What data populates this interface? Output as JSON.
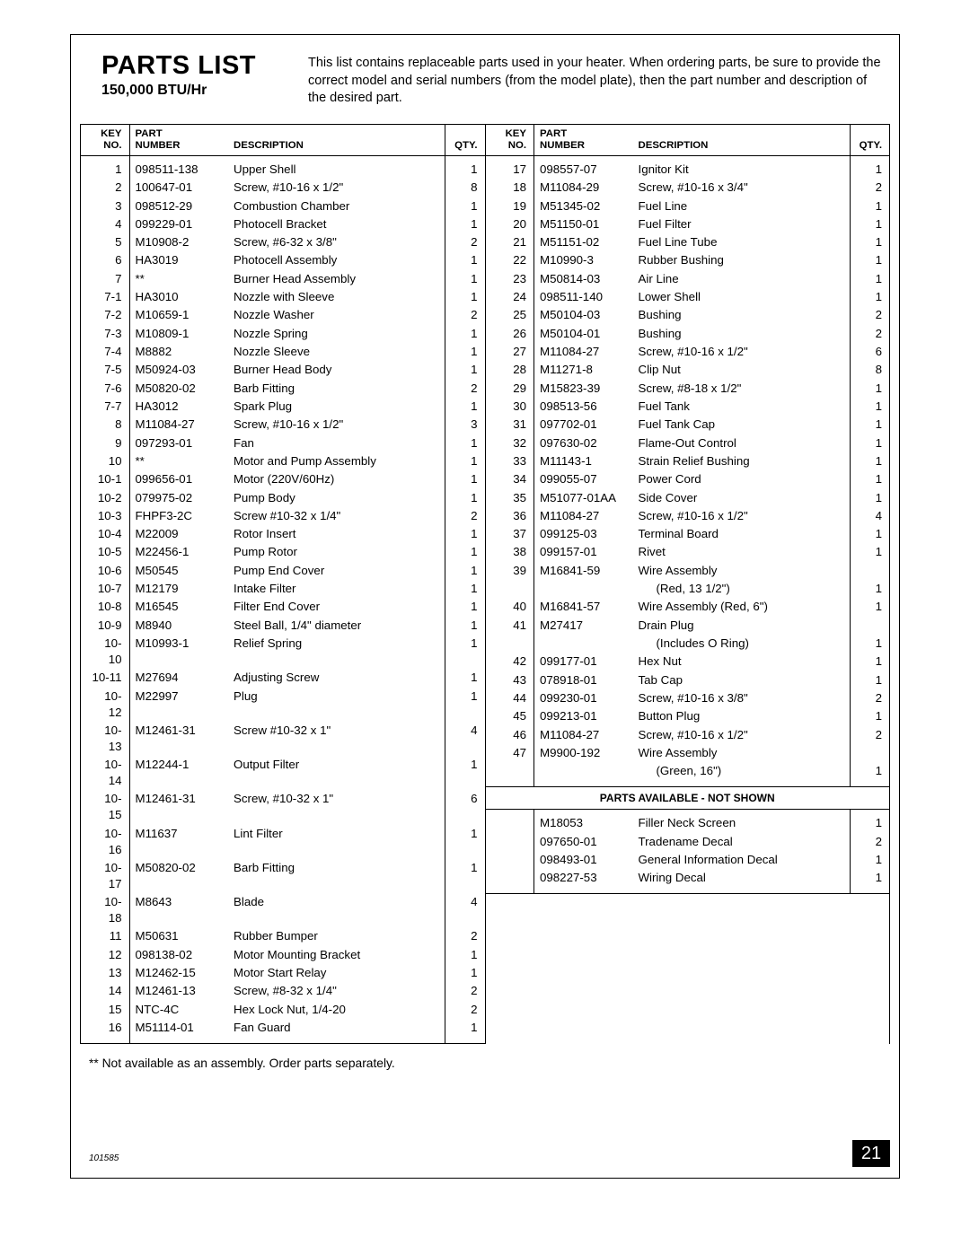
{
  "title": "PARTS LIST",
  "subtitle": "150,000 BTU/Hr",
  "intro": "This list contains replaceable parts used in your heater. When ordering parts, be sure to provide the correct model and serial numbers (from the model plate), then the part number and description of the desired part.",
  "headers": {
    "key": "KEY NO.",
    "part": "PART NUMBER",
    "desc": "DESCRIPTION",
    "qty": "QTY."
  },
  "left": [
    {
      "k": "1",
      "p": "098511-138",
      "d": "Upper Shell",
      "q": "1"
    },
    {
      "k": "2",
      "p": "100647-01",
      "d": "Screw, #10-16 x 1/2\"",
      "q": "8"
    },
    {
      "k": "3",
      "p": "098512-29",
      "d": "Combustion Chamber",
      "q": "1"
    },
    {
      "k": "4",
      "p": "099229-01",
      "d": "Photocell Bracket",
      "q": "1"
    },
    {
      "k": "5",
      "p": "M10908-2",
      "d": "Screw, #6-32 x 3/8\"",
      "q": "2"
    },
    {
      "k": "6",
      "p": "HA3019",
      "d": "Photocell Assembly",
      "q": "1"
    },
    {
      "k": "7",
      "p": "**",
      "d": "Burner Head Assembly",
      "q": "1"
    },
    {
      "k": "7-1",
      "p": "HA3010",
      "d": "Nozzle with Sleeve",
      "q": "1",
      "sub": true
    },
    {
      "k": "7-2",
      "p": "M10659-1",
      "d": "Nozzle Washer",
      "q": "2",
      "sub": true
    },
    {
      "k": "7-3",
      "p": "M10809-1",
      "d": "Nozzle Spring",
      "q": "1",
      "sub": true
    },
    {
      "k": "7-4",
      "p": "M8882",
      "d": "Nozzle Sleeve",
      "q": "1",
      "sub": true
    },
    {
      "k": "7-5",
      "p": "M50924-03",
      "d": "Burner Head Body",
      "q": "1",
      "sub": true
    },
    {
      "k": "7-6",
      "p": "M50820-02",
      "d": "Barb Fitting",
      "q": "2",
      "sub": true
    },
    {
      "k": "7-7",
      "p": "HA3012",
      "d": "Spark Plug",
      "q": "1",
      "sub": true
    },
    {
      "k": "8",
      "p": "M11084-27",
      "d": "Screw, #10-16 x 1/2\"",
      "q": "3"
    },
    {
      "k": "9",
      "p": "097293-01",
      "d": "Fan",
      "q": "1"
    },
    {
      "k": "10",
      "p": "**",
      "d": "Motor and Pump Assembly",
      "q": "1"
    },
    {
      "k": "10-1",
      "p": "099656-01",
      "d": "Motor (220V/60Hz)",
      "q": "1",
      "sub": true
    },
    {
      "k": "10-2",
      "p": "079975-02",
      "d": "Pump Body",
      "q": "1",
      "sub": true
    },
    {
      "k": "10-3",
      "p": "FHPF3-2C",
      "d": "Screw #10-32 x 1/4\"",
      "q": "2",
      "sub": true
    },
    {
      "k": "10-4",
      "p": "M22009",
      "d": "Rotor Insert",
      "q": "1",
      "sub": true
    },
    {
      "k": "10-5",
      "p": "M22456-1",
      "d": "Pump Rotor",
      "q": "1",
      "sub": true
    },
    {
      "k": "10-6",
      "p": "M50545",
      "d": "Pump End Cover",
      "q": "1",
      "sub": true
    },
    {
      "k": "10-7",
      "p": "M12179",
      "d": "Intake Filter",
      "q": "1",
      "sub": true
    },
    {
      "k": "10-8",
      "p": "M16545",
      "d": "Filter End Cover",
      "q": "1",
      "sub": true
    },
    {
      "k": "10-9",
      "p": "M8940",
      "d": "Steel Ball, 1/4\" diameter",
      "q": "1",
      "sub": true
    },
    {
      "k": "10-10",
      "p": "M10993-1",
      "d": "Relief Spring",
      "q": "1",
      "sub": true
    },
    {
      "k": "10-11",
      "p": "M27694",
      "d": "Adjusting Screw",
      "q": "1",
      "sub": true
    },
    {
      "k": "10-12",
      "p": "M22997",
      "d": "Plug",
      "q": "1",
      "sub": true
    },
    {
      "k": "10-13",
      "p": "M12461-31",
      "d": "Screw #10-32 x 1\"",
      "q": "4",
      "sub": true
    },
    {
      "k": "10-14",
      "p": "M12244-1",
      "d": "Output Filter",
      "q": "1",
      "sub": true
    },
    {
      "k": "10-15",
      "p": "M12461-31",
      "d": "Screw, #10-32 x 1\"",
      "q": "6",
      "sub": true
    },
    {
      "k": "10-16",
      "p": "M11637",
      "d": "Lint Filter",
      "q": "1",
      "sub": true
    },
    {
      "k": "10-17",
      "p": "M50820-02",
      "d": "Barb Fitting",
      "q": "1",
      "sub": true
    },
    {
      "k": "10-18",
      "p": "M8643",
      "d": "Blade",
      "q": "4",
      "sub": true
    },
    {
      "k": "11",
      "p": "M50631",
      "d": "Rubber Bumper",
      "q": "2"
    },
    {
      "k": "12",
      "p": "098138-02",
      "d": "Motor Mounting Bracket",
      "q": "1"
    },
    {
      "k": "13",
      "p": "M12462-15",
      "d": "Motor Start Relay",
      "q": "1"
    },
    {
      "k": "14",
      "p": "M12461-13",
      "d": "Screw, #8-32 x 1/4\"",
      "q": "2"
    },
    {
      "k": "15",
      "p": "NTC-4C",
      "d": "Hex Lock Nut, 1/4-20",
      "q": "2"
    },
    {
      "k": "16",
      "p": "M51114-01",
      "d": "Fan Guard",
      "q": "1"
    }
  ],
  "right": [
    {
      "k": "17",
      "p": "098557-07",
      "d": "Ignitor Kit",
      "q": "1"
    },
    {
      "k": "18",
      "p": "M11084-29",
      "d": "Screw, #10-16 x 3/4\"",
      "q": "2"
    },
    {
      "k": "19",
      "p": "M51345-02",
      "d": "Fuel Line",
      "q": "1"
    },
    {
      "k": "20",
      "p": "M51150-01",
      "d": "Fuel Filter",
      "q": "1"
    },
    {
      "k": "21",
      "p": "M51151-02",
      "d": "Fuel Line Tube",
      "q": "1"
    },
    {
      "k": "22",
      "p": "M10990-3",
      "d": "Rubber Bushing",
      "q": "1"
    },
    {
      "k": "23",
      "p": "M50814-03",
      "d": "Air Line",
      "q": "1"
    },
    {
      "k": "24",
      "p": "098511-140",
      "d": "Lower Shell",
      "q": "1"
    },
    {
      "k": "25",
      "p": "M50104-03",
      "d": "Bushing",
      "q": "2"
    },
    {
      "k": "26",
      "p": "M50104-01",
      "d": "Bushing",
      "q": "2"
    },
    {
      "k": "27",
      "p": "M11084-27",
      "d": "Screw, #10-16 x 1/2\"",
      "q": "6"
    },
    {
      "k": "28",
      "p": "M11271-8",
      "d": "Clip Nut",
      "q": "8"
    },
    {
      "k": "29",
      "p": "M15823-39",
      "d": "Screw, #8-18 x 1/2\"",
      "q": "1"
    },
    {
      "k": "30",
      "p": "098513-56",
      "d": "Fuel Tank",
      "q": "1"
    },
    {
      "k": "31",
      "p": "097702-01",
      "d": "Fuel Tank Cap",
      "q": "1"
    },
    {
      "k": "32",
      "p": "097630-02",
      "d": "Flame-Out Control",
      "q": "1"
    },
    {
      "k": "33",
      "p": "M11143-1",
      "d": "Strain Relief Bushing",
      "q": "1"
    },
    {
      "k": "34",
      "p": "099055-07",
      "d": "Power Cord",
      "q": "1"
    },
    {
      "k": "35",
      "p": "M51077-01AA",
      "d": "Side Cover",
      "q": "1"
    },
    {
      "k": "36",
      "p": "M11084-27",
      "d": "Screw, #10-16 x 1/2\"",
      "q": "4"
    },
    {
      "k": "37",
      "p": "099125-03",
      "d": "Terminal Board",
      "q": "1"
    },
    {
      "k": "38",
      "p": "099157-01",
      "d": "Rivet",
      "q": "1"
    },
    {
      "k": "39",
      "p": "M16841-59",
      "d": "Wire Assembly",
      "q": ""
    },
    {
      "k": "",
      "p": "",
      "d": "(Red, 13 1/2\")",
      "q": "1",
      "indent": true
    },
    {
      "k": "40",
      "p": "M16841-57",
      "d": "Wire Assembly (Red, 6\")",
      "q": "1"
    },
    {
      "k": "41",
      "p": "M27417",
      "d": "Drain Plug",
      "q": ""
    },
    {
      "k": "",
      "p": "",
      "d": "(Includes  O  Ring)",
      "q": "1",
      "indent": true
    },
    {
      "k": "42",
      "p": "099177-01",
      "d": "Hex Nut",
      "q": "1"
    },
    {
      "k": "43",
      "p": "078918-01",
      "d": "Tab Cap",
      "q": "1"
    },
    {
      "k": "44",
      "p": "099230-01",
      "d": "Screw, #10-16 x 3/8\"",
      "q": "2"
    },
    {
      "k": "45",
      "p": "099213-01",
      "d": "Button Plug",
      "q": "1"
    },
    {
      "k": "46",
      "p": "M11084-27",
      "d": "Screw, #10-16 x 1/2\"",
      "q": "2"
    },
    {
      "k": "47",
      "p": "M9900-192",
      "d": "Wire Assembly",
      "q": ""
    },
    {
      "k": "",
      "p": "",
      "d": "(Green, 16\")",
      "q": "1",
      "indent": true
    }
  ],
  "notshown_header": "PARTS AVAILABLE - NOT SHOWN",
  "notshown": [
    {
      "k": "",
      "p": "M18053",
      "d": "Filler Neck Screen",
      "q": "1"
    },
    {
      "k": "",
      "p": "097650-01",
      "d": "Tradename Decal",
      "q": "2"
    },
    {
      "k": "",
      "p": "098493-01",
      "d": "General Information Decal",
      "q": "1"
    },
    {
      "k": "",
      "p": "098227-53",
      "d": "Wiring Decal",
      "q": "1"
    }
  ],
  "footnote": "** Not available as an assembly. Order parts separately.",
  "page_number": "21",
  "doc_id": "101585"
}
